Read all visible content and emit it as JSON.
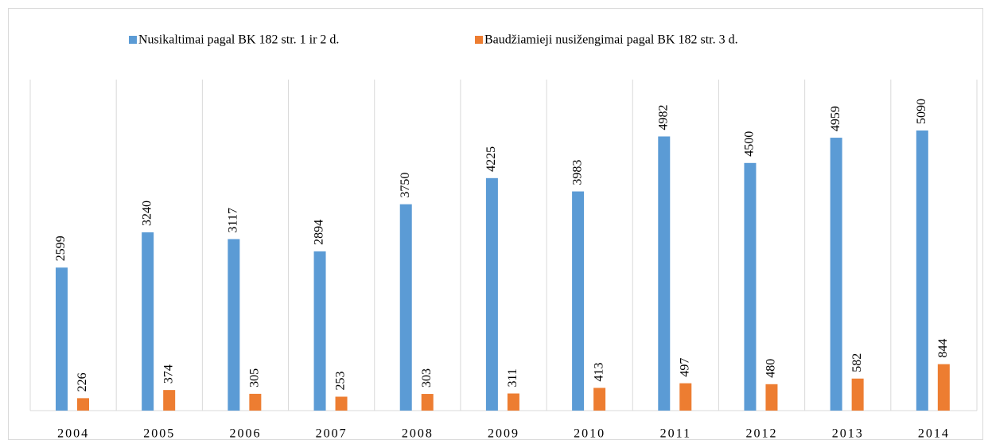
{
  "chart_data": {
    "type": "bar",
    "categories": [
      "2004",
      "2005",
      "2006",
      "2007",
      "2008",
      "2009",
      "2010",
      "2011",
      "2012",
      "2013",
      "2014"
    ],
    "series": [
      {
        "name": "Nusikaltimai pagal BK 182 str. 1 ir 2 d.",
        "color": "#5b9bd5",
        "values": [
          2599,
          3240,
          3117,
          2894,
          3750,
          4225,
          3983,
          4982,
          4500,
          4959,
          5090
        ]
      },
      {
        "name": "Baudžiamieji nusižengimai pagal BK 182 str. 3 d.",
        "color": "#ed7d31",
        "values": [
          226,
          374,
          305,
          253,
          303,
          311,
          413,
          497,
          480,
          582,
          844
        ]
      }
    ],
    "legend": "top"
  }
}
